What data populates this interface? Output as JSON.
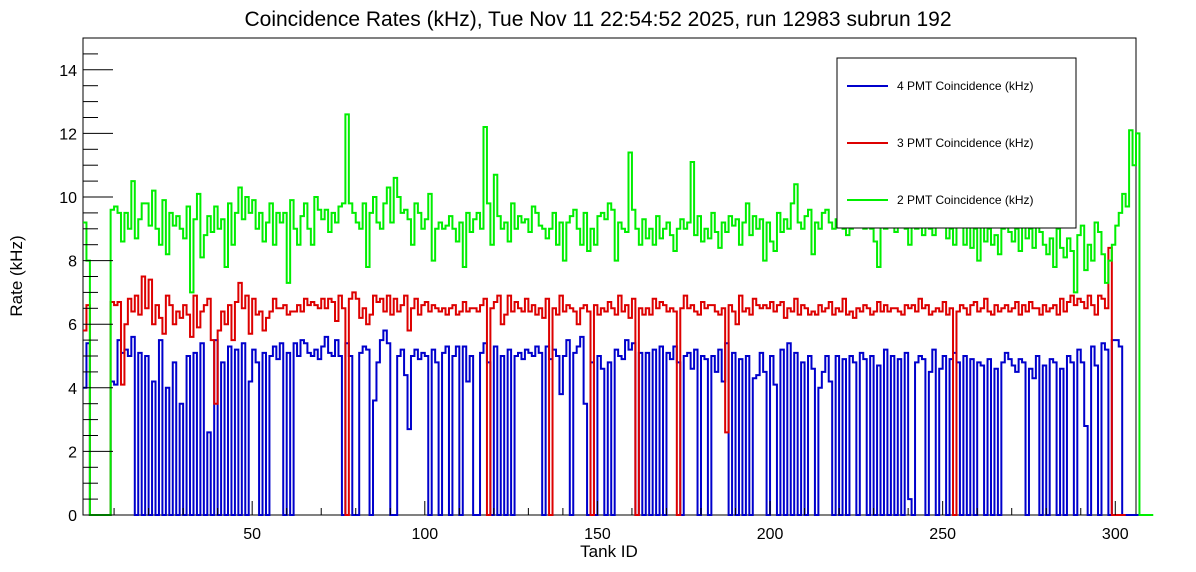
{
  "chart_data": {
    "type": "line",
    "title": "Coincidence Rates (kHz), Tue Nov 11 22:54:52 2025, run 12983 subrun 192",
    "xlabel": "Tank ID",
    "ylabel": "Rate (kHz)",
    "xlim": [
      1,
      306
    ],
    "ylim": [
      0,
      15
    ],
    "xticks": [
      50,
      100,
      150,
      200,
      250,
      300
    ],
    "yticks": [
      0,
      2,
      4,
      6,
      8,
      10,
      12,
      14
    ],
    "legend_position": "top-right",
    "x_start": 1,
    "bin_width": 1,
    "series": [
      {
        "name": "4 PMT Coincidence (kHz)",
        "color": "#0000cc",
        "values": [
          4.0,
          5.4,
          0,
          0,
          0,
          0,
          0,
          0,
          4.2,
          4.1,
          5.5,
          5.1,
          5.2,
          5.0,
          5.6,
          0,
          5.1,
          0,
          5.0,
          0,
          4.2,
          0,
          5.5,
          0,
          4.0,
          0,
          4.8,
          0,
          3.5,
          0,
          5.0,
          0,
          5.1,
          0,
          5.4,
          0,
          2.6,
          0,
          5.5,
          0,
          4.8,
          0,
          5.3,
          0,
          5.2,
          0,
          5.4,
          0,
          4.2,
          5.2,
          4.8,
          0,
          5.1,
          0,
          5.0,
          5.3,
          4.9,
          5.4,
          0,
          5.1,
          0,
          5.4,
          5.0,
          5.5,
          5.4,
          5.1,
          5.0,
          5.2,
          4.9,
          5.3,
          5.6,
          5.1,
          5.0,
          5.5,
          5.0,
          0,
          5.4,
          5.0,
          0,
          0,
          5.1,
          5.3,
          5.2,
          0,
          3.6,
          4.8,
          5.5,
          5.8,
          5.4,
          0,
          0,
          5.0,
          5.2,
          4.4,
          2.7,
          5.0,
          5.2,
          4.9,
          5.1,
          5.0,
          0,
          5.2,
          4.8,
          0,
          5.1,
          5.3,
          0,
          5.0,
          5.3,
          0,
          5.3,
          4.2,
          5.0,
          0,
          0,
          5.1,
          5.4,
          4.8,
          0,
          5.3,
          0,
          5.0,
          0,
          5.2,
          0,
          5.0,
          5.1,
          4.9,
          5.2,
          5.1,
          5.0,
          5.3,
          5.1,
          0,
          5.3,
          4.9,
          5.2,
          5.0,
          3.8,
          5.0,
          5.5,
          0,
          5.1,
          5.3,
          5.6,
          3.5,
          0,
          4.8,
          0,
          5.0,
          4.6,
          0,
          4.8,
          0,
          5.2,
          5.0,
          4.9,
          5.5,
          5.2,
          5.4,
          0,
          5.1,
          0,
          5.1,
          0,
          5.2,
          0,
          5.3,
          0,
          5.1,
          4.9,
          5.3,
          4.8,
          0,
          5.0,
          5.1,
          4.6,
          5.2,
          0,
          5.0,
          4.9,
          0,
          5.0,
          4.5,
          5.2,
          4.2,
          5.4,
          0,
          5.1,
          0,
          4.9,
          0,
          5.0,
          0,
          4.3,
          4.4,
          5.1,
          4.5,
          0,
          5.0,
          4.1,
          0,
          5.2,
          0,
          5.4,
          0,
          5.1,
          0,
          4.8,
          0,
          5.0,
          4.6,
          0,
          4.0,
          4.5,
          5.0,
          4.2,
          0,
          5.0,
          0,
          4.9,
          0,
          5.0,
          4.8,
          0,
          5.1,
          4.9,
          0,
          5.0,
          0,
          4.7,
          0,
          5.2,
          0,
          5.0,
          0,
          4.9,
          0,
          5.1,
          0.5,
          0,
          4.8,
          5.0,
          4.9,
          0,
          4.5,
          5.2,
          0,
          4.6,
          5.0,
          0,
          4.9,
          5.1,
          4.8,
          0,
          5.0,
          0,
          4.9,
          0,
          4.8,
          4.7,
          0,
          4.9,
          0,
          4.6,
          0,
          4.8,
          5.1,
          4.9,
          4.7,
          4.5,
          4.9,
          4.8,
          0,
          4.6,
          4.3,
          5.0,
          0,
          4.7,
          0,
          4.9,
          4.8,
          0,
          4.6,
          0,
          5.0,
          4.8,
          0,
          5.2,
          4.8,
          2.8,
          0,
          5.3,
          4.7,
          0,
          5.4,
          5.2,
          0,
          5.5,
          5.5,
          5.3,
          0,
          0,
          0,
          0,
          0
        ]
      },
      {
        "name": "3 PMT Coincidence (kHz)",
        "color": "#dd0000",
        "values": [
          5.8,
          6.6,
          0,
          0,
          0,
          0,
          0,
          0,
          6.7,
          6.6,
          6.7,
          4.1,
          6.0,
          6.8,
          6.4,
          6.9,
          6.3,
          7.5,
          6.5,
          7.4,
          6.0,
          6.6,
          6.2,
          5.7,
          6.9,
          6.6,
          6.0,
          6.4,
          6.2,
          6.6,
          6.3,
          5.6,
          6.9,
          5.9,
          6.4,
          6.6,
          6.8,
          5.5,
          3.5,
          5.8,
          6.4,
          6.0,
          6.6,
          5.5,
          6.7,
          7.3,
          6.5,
          6.9,
          5.7,
          6.8,
          6.3,
          6.4,
          5.8,
          6.2,
          6.4,
          6.8,
          6.5,
          6.5,
          6.6,
          6.3,
          6.4,
          6.4,
          6.6,
          6.4,
          6.8,
          6.6,
          6.7,
          6.6,
          6.5,
          6.8,
          6.5,
          6.8,
          6.7,
          6.1,
          6.9,
          6.5,
          0,
          6.8,
          7.0,
          6.8,
          6.2,
          6.5,
          6.0,
          6.3,
          6.9,
          6.7,
          6.8,
          6.4,
          6.9,
          6.3,
          6.8,
          6.4,
          6.6,
          6.9,
          5.8,
          6.5,
          6.8,
          6.3,
          6.6,
          6.7,
          6.4,
          6.6,
          6.5,
          6.4,
          6.5,
          6.3,
          6.5,
          6.6,
          6.3,
          6.4,
          6.7,
          6.4,
          6.5,
          6.5,
          6.4,
          6.6,
          6.8,
          0,
          6.5,
          6.7,
          6.9,
          6.0,
          6.3,
          6.9,
          6.4,
          6.7,
          6.5,
          6.4,
          6.8,
          6.4,
          6.6,
          6.3,
          6.5,
          6.2,
          6.8,
          0,
          6.5,
          6.3,
          6.9,
          6.4,
          6.6,
          6.5,
          6.4,
          6.0,
          6.5,
          6.6,
          6.4,
          0,
          6.6,
          6.3,
          6.5,
          6.4,
          6.7,
          6.5,
          6.3,
          6.9,
          6.4,
          6.6,
          6.2,
          6.8,
          0,
          6.5,
          6.3,
          6.5,
          6.3,
          6.8,
          6.5,
          6.7,
          6.6,
          6.4,
          6.5,
          6.4,
          0,
          6.5,
          6.9,
          6.5,
          6.6,
          6.4,
          6.3,
          6.7,
          6.5,
          6.6,
          6.6,
          6.4,
          6.3,
          6.5,
          2.6,
          6.6,
          6.4,
          6.0,
          6.9,
          6.4,
          6.5,
          6.3,
          6.8,
          6.6,
          6.5,
          6.6,
          6.5,
          6.7,
          6.4,
          6.6,
          6.7,
          6.2,
          6.5,
          6.4,
          6.8,
          6.3,
          6.6,
          6.5,
          6.3,
          6.4,
          6.3,
          6.6,
          6.4,
          6.5,
          6.7,
          6.3,
          6.5,
          6.4,
          6.8,
          6.3,
          6.4,
          6.2,
          6.5,
          6.4,
          6.6,
          6.5,
          6.3,
          6.4,
          6.7,
          6.4,
          6.6,
          6.4,
          6.5,
          6.5,
          6.4,
          6.3,
          6.6,
          6.5,
          6.6,
          6.4,
          6.8,
          6.5,
          6.6,
          6.3,
          6.4,
          6.5,
          6.4,
          6.7,
          6.3,
          6.5,
          0,
          6.4,
          6.6,
          6.5,
          6.3,
          6.6,
          6.7,
          6.4,
          6.5,
          6.8,
          6.4,
          6.3,
          6.6,
          6.4,
          6.5,
          6.6,
          6.4,
          6.5,
          6.7,
          6.3,
          6.6,
          6.4,
          6.7,
          6.5,
          6.5,
          6.3,
          6.6,
          6.4,
          6.5,
          6.6,
          6.3,
          6.8,
          6.4,
          6.7,
          6.9,
          6.6,
          6.8,
          6.7,
          6.5,
          6.9,
          6.6,
          6.3,
          6.9,
          6.8,
          6.5,
          8.4,
          0,
          0,
          0,
          0
        ]
      },
      {
        "name": "2 PMT Coincidence (kHz)",
        "color": "#00ee00",
        "values": [
          9.2,
          8.0,
          0,
          0,
          0,
          0,
          0,
          0,
          9.6,
          9.7,
          9.5,
          8.6,
          9.5,
          9.0,
          10.5,
          8.7,
          9.3,
          9.8,
          9.8,
          9.1,
          10.2,
          9.0,
          8.5,
          9.9,
          8.2,
          9.5,
          9.1,
          9.4,
          9.0,
          8.7,
          9.7,
          7.0,
          9.3,
          10.1,
          8.1,
          8.8,
          9.4,
          8.9,
          9.7,
          9.0,
          9.3,
          7.8,
          9.8,
          8.5,
          9.5,
          10.3,
          9.3,
          10.0,
          9.5,
          9.9,
          9.0,
          9.5,
          8.6,
          9.2,
          9.8,
          8.5,
          9.5,
          9.2,
          9.5,
          7.3,
          9.9,
          9.0,
          8.5,
          9.4,
          9.8,
          9.0,
          8.5,
          10.0,
          9.6,
          9.3,
          9.6,
          8.9,
          9.5,
          9.2,
          9.7,
          9.8,
          12.6,
          9.8,
          9.5,
          9.2,
          9.0,
          9.8,
          7.8,
          9.5,
          10.0,
          9.2,
          9.0,
          9.8,
          10.3,
          9.2,
          10.6,
          10.0,
          9.5,
          9.6,
          9.3,
          8.5,
          9.8,
          9.5,
          9.0,
          9.3,
          10.1,
          8.0,
          9.0,
          9.2,
          9.0,
          9.1,
          9.4,
          9.0,
          8.6,
          9.2,
          7.8,
          9.5,
          8.9,
          9.3,
          9.5,
          9.0,
          12.2,
          9.8,
          8.5,
          10.7,
          9.4,
          9.0,
          9.2,
          8.6,
          9.8,
          9.0,
          9.4,
          9.2,
          9.3,
          8.9,
          9.7,
          9.5,
          9.1,
          9.0,
          8.7,
          9.0,
          9.5,
          8.5,
          9.2,
          8.0,
          9.2,
          9.4,
          9.6,
          9.0,
          8.5,
          9.5,
          8.3,
          9.0,
          8.5,
          9.4,
          9.5,
          9.3,
          9.8,
          9.6,
          8.0,
          9.2,
          9.0,
          8.9,
          11.4,
          9.6,
          9.0,
          8.5,
          9.3,
          8.7,
          9.0,
          8.5,
          9.4,
          8.7,
          9.0,
          9.2,
          8.8,
          8.3,
          9.0,
          9.3,
          9.0,
          9.2,
          11.1,
          8.8,
          9.4,
          8.6,
          9.0,
          8.7,
          9.5,
          8.9,
          8.4,
          9.2,
          8.9,
          9.4,
          9.1,
          9.3,
          8.5,
          9.2,
          9.8,
          8.8,
          9.4,
          9.0,
          9.3,
          8.0,
          9.2,
          8.6,
          8.3,
          9.5,
          8.9,
          9.3,
          9.0,
          9.8,
          10.4,
          9.2,
          9.0,
          9.4,
          9.6,
          8.2,
          9.2,
          9.0,
          9.5,
          9.6,
          9.2,
          9.0,
          9.3,
          9.1,
          9.0,
          8.8,
          9.0,
          9.5,
          10.4,
          9.3,
          9.0,
          9.6,
          9.0,
          8.6,
          7.8,
          9.3,
          9.0,
          9.2,
          9.5,
          8.9,
          9.2,
          9.4,
          9.0,
          8.5,
          9.3,
          9.0,
          9.2,
          8.8,
          9.5,
          9.0,
          8.8,
          9.1,
          9.2,
          9.2,
          8.7,
          9.0,
          8.5,
          9.3,
          9.6,
          8.5,
          9.1,
          8.4,
          9.0,
          8.0,
          9.5,
          8.6,
          9.0,
          8.5,
          8.8,
          8.2,
          9.0,
          9.2,
          8.9,
          8.6,
          9.0,
          8.3,
          9.5,
          8.7,
          9.0,
          8.4,
          9.1,
          8.9,
          8.5,
          8.2,
          8.7,
          7.8,
          9.0,
          8.4,
          8.1,
          8.7,
          8.3,
          7.0,
          8.8,
          9.1,
          7.7,
          8.5,
          8.0,
          9.2,
          8.9,
          8.2,
          7.3,
          8.0,
          8.5,
          9.1,
          9.5,
          10.1,
          9.7,
          12.1,
          11.0,
          12.0,
          0,
          0,
          0,
          0
        ]
      }
    ]
  }
}
